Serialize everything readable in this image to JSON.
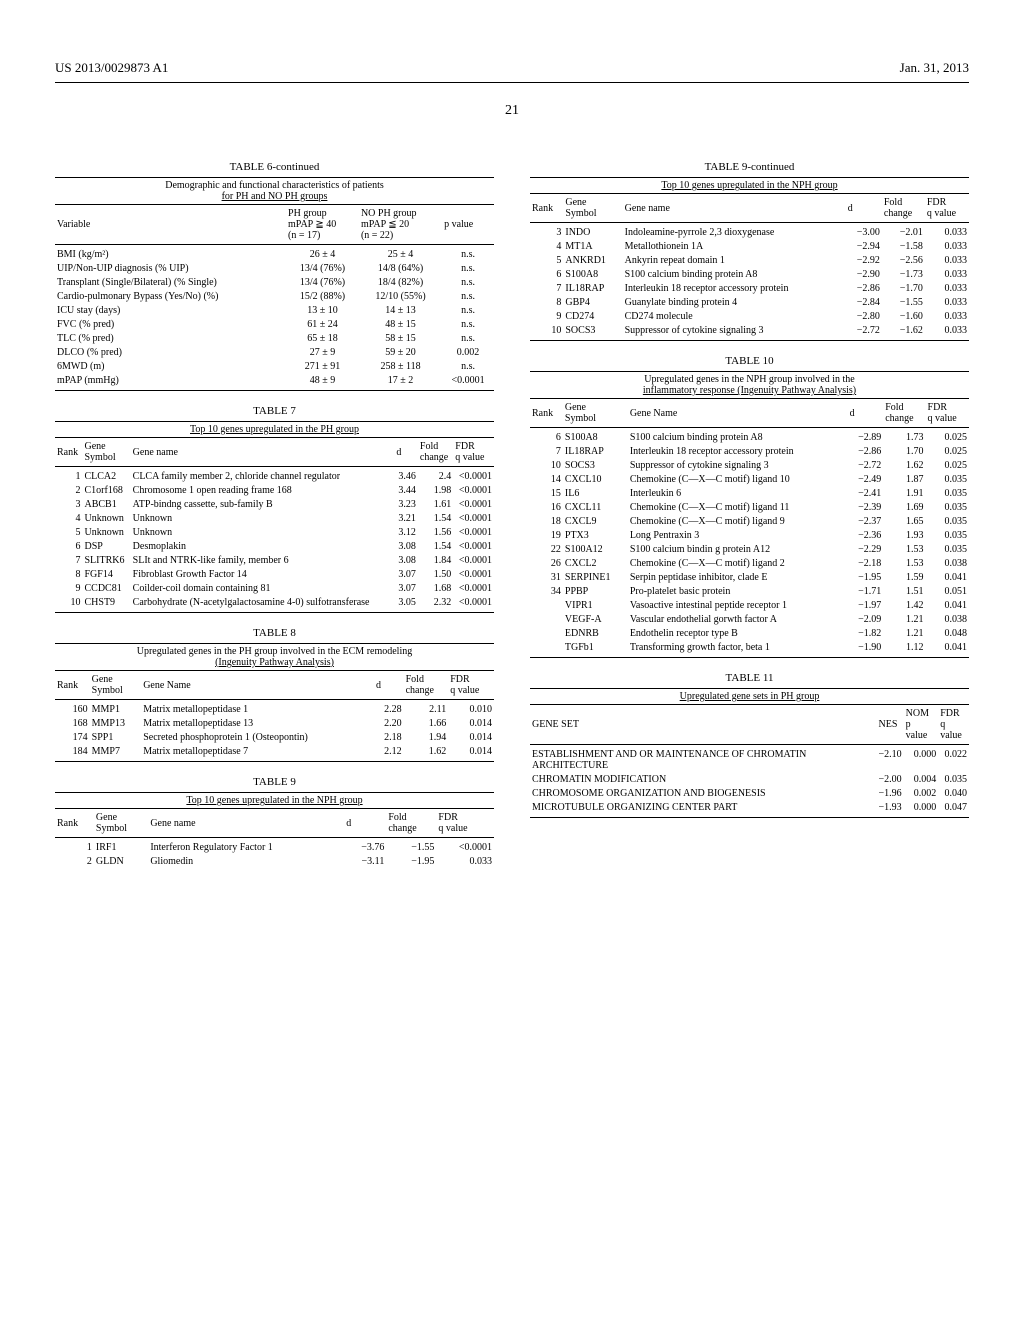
{
  "header": {
    "left": "US 2013/0029873 A1",
    "right": "Jan. 31, 2013",
    "page": "21"
  },
  "table6": {
    "title": "TABLE 6-continued",
    "subtitle1": "Demographic and functional characteristics of patients",
    "subtitle2": "for PH and NO PH groups",
    "col_headers": [
      "Variable",
      "PH group mPAP ≧ 40 (n = 17)",
      "NO PH group mPAP ≦ 20 (n = 22)",
      "p value"
    ],
    "rows": [
      [
        "BMI (kg/m²)",
        "26 ± 4",
        "25 ± 4",
        "n.s."
      ],
      [
        "UIP/Non-UIP diagnosis (% UIP)",
        "13/4 (76%)",
        "14/8 (64%)",
        "n.s."
      ],
      [
        "Transplant (Single/Bilateral) (% Single)",
        "13/4 (76%)",
        "18/4 (82%)",
        "n.s."
      ],
      [
        "Cardio-pulmonary Bypass (Yes/No) (%)",
        "15/2 (88%)",
        "12/10 (55%)",
        "n.s."
      ],
      [
        "ICU stay (days)",
        "13 ± 10",
        "14 ± 13",
        "n.s."
      ],
      [
        "FVC (% pred)",
        "61 ± 24",
        "48 ± 15",
        "n.s."
      ],
      [
        "TLC (% pred)",
        "65 ± 18",
        "58 ± 15",
        "n.s."
      ],
      [
        "DLCO (% pred)",
        "27 ± 9",
        "59 ± 20",
        "0.002"
      ],
      [
        "6MWD (m)",
        "271 ± 91",
        "258 ± 118",
        "n.s."
      ],
      [
        "mPAP (mmHg)",
        "48 ± 9",
        "17 ± 2",
        "<0.0001"
      ]
    ]
  },
  "table7": {
    "title": "TABLE 7",
    "subtitle": "Top 10 genes upregulated in the PH group",
    "col_headers": [
      "Rank",
      "Gene Symbol",
      "Gene name",
      "d",
      "Fold change",
      "FDR q value"
    ],
    "rows": [
      [
        "1",
        "CLCA2",
        "CLCA family member 2, chloride channel regulator",
        "3.46",
        "2.4",
        "<0.0001"
      ],
      [
        "2",
        "C1orf168",
        "Chromosome 1 open reading frame 168",
        "3.44",
        "1.98",
        "<0.0001"
      ],
      [
        "3",
        "ABCB1",
        "ATP-bindng cassette, sub-family B",
        "3.23",
        "1.61",
        "<0.0001"
      ],
      [
        "4",
        "Unknown",
        "Unknown",
        "3.21",
        "1.54",
        "<0.0001"
      ],
      [
        "5",
        "Unknown",
        "Unknown",
        "3.12",
        "1.56",
        "<0.0001"
      ],
      [
        "6",
        "DSP",
        "Desmoplakin",
        "3.08",
        "1.54",
        "<0.0001"
      ],
      [
        "7",
        "SLITRK6",
        "SLIt and NTRK-like family, member 6",
        "3.08",
        "1.84",
        "<0.0001"
      ],
      [
        "8",
        "FGF14",
        "Fibroblast Growth Factor 14",
        "3.07",
        "1.50",
        "<0.0001"
      ],
      [
        "9",
        "CCDC81",
        "Coilder-coil domain containing 81",
        "3.07",
        "1.68",
        "<0.0001"
      ],
      [
        "10",
        "CHST9",
        "Carbohydrate (N-acetylgalactosamine 4-0) sulfotransferase",
        "3.05",
        "2.32",
        "<0.0001"
      ]
    ]
  },
  "table8": {
    "title": "TABLE 8",
    "subtitle1": "Upregulated genes in the PH group involved in the ECM remodeling",
    "subtitle2": "(Ingenuity Pathway Analysis)",
    "col_headers": [
      "Rank",
      "Gene Symbol",
      "Gene Name",
      "d",
      "Fold change",
      "FDR q value"
    ],
    "rows": [
      [
        "160",
        "MMP1",
        "Matrix metallopeptidase 1",
        "2.28",
        "2.11",
        "0.010"
      ],
      [
        "168",
        "MMP13",
        "Matrix metallopeptidase 13",
        "2.20",
        "1.66",
        "0.014"
      ],
      [
        "174",
        "SPP1",
        "Secreted phosphoprotein 1 (Osteopontin)",
        "2.18",
        "1.94",
        "0.014"
      ],
      [
        "184",
        "MMP7",
        "Matrix metallopeptidase 7",
        "2.12",
        "1.62",
        "0.014"
      ]
    ]
  },
  "table9head": {
    "title": "TABLE 9",
    "subtitle": "Top 10 genes upregulated in the NPH group",
    "col_headers": [
      "Rank",
      "Gene Symbol",
      "Gene name",
      "d",
      "Fold change",
      "FDR q value"
    ],
    "rows": [
      [
        "1",
        "IRF1",
        "Interferon Regulatory Factor 1",
        "−3.76",
        "−1.55",
        "<0.0001"
      ],
      [
        "2",
        "GLDN",
        "Gliomedin",
        "−3.11",
        "−1.95",
        "0.033"
      ]
    ]
  },
  "table9cont": {
    "title": "TABLE 9-continued",
    "subtitle": "Top 10 genes upregulated in the NPH group",
    "col_headers": [
      "Rank",
      "Gene Symbol",
      "Gene name",
      "d",
      "Fold change",
      "FDR q value"
    ],
    "rows": [
      [
        "3",
        "INDO",
        "Indoleamine-pyrrole 2,3 dioxygenase",
        "−3.00",
        "−2.01",
        "0.033"
      ],
      [
        "4",
        "MT1A",
        "Metallothionein 1A",
        "−2.94",
        "−1.58",
        "0.033"
      ],
      [
        "5",
        "ANKRD1",
        "Ankyrin repeat domain 1",
        "−2.92",
        "−2.56",
        "0.033"
      ],
      [
        "6",
        "S100A8",
        "S100 calcium binding protein A8",
        "−2.90",
        "−1.73",
        "0.033"
      ],
      [
        "7",
        "IL18RAP",
        "Interleukin 18 receptor accessory protein",
        "−2.86",
        "−1.70",
        "0.033"
      ],
      [
        "8",
        "GBP4",
        "Guanylate binding protein 4",
        "−2.84",
        "−1.55",
        "0.033"
      ],
      [
        "9",
        "CD274",
        "CD274 molecule",
        "−2.80",
        "−1.60",
        "0.033"
      ],
      [
        "10",
        "SOCS3",
        "Suppressor of cytokine signaling 3",
        "−2.72",
        "−1.62",
        "0.033"
      ]
    ]
  },
  "table10": {
    "title": "TABLE 10",
    "subtitle1": "Upregulated genes in the NPH group involved in the",
    "subtitle2": "inflammatory response (Ingenuity Pathway Analysis)",
    "col_headers": [
      "Rank",
      "Gene Symbol",
      "Gene Name",
      "d",
      "Fold change",
      "FDR q value"
    ],
    "rows": [
      [
        "6",
        "S100A8",
        "S100 calcium binding protein A8",
        "−2.89",
        "1.73",
        "0.025"
      ],
      [
        "7",
        "IL18RAP",
        "Interleukin 18 receptor accessory protein",
        "−2.86",
        "1.70",
        "0.025"
      ],
      [
        "10",
        "SOCS3",
        "Suppressor of cytokine signaling 3",
        "−2.72",
        "1.62",
        "0.025"
      ],
      [
        "14",
        "CXCL10",
        "Chemokine (C—X—C motif) ligand 10",
        "−2.49",
        "1.87",
        "0.035"
      ],
      [
        "15",
        "IL6",
        "Interleukin 6",
        "−2.41",
        "1.91",
        "0.035"
      ],
      [
        "16",
        "CXCL11",
        "Chemokine (C—X—C motif) ligand 11",
        "−2.39",
        "1.69",
        "0.035"
      ],
      [
        "18",
        "CXCL9",
        "Chemokine (C—X—C motif) ligand 9",
        "−2.37",
        "1.65",
        "0.035"
      ],
      [
        "19",
        "PTX3",
        "Long Pentraxin 3",
        "−2.36",
        "1.93",
        "0.035"
      ],
      [
        "22",
        "S100A12",
        "S100 calcium bindin g protein A12",
        "−2.29",
        "1.53",
        "0.035"
      ],
      [
        "26",
        "CXCL2",
        "Chemokine (C—X—C motif) ligand 2",
        "−2.18",
        "1.53",
        "0.038"
      ],
      [
        "31",
        "SERPINE1",
        "Serpin peptidase inhibitor, clade E",
        "−1.95",
        "1.59",
        "0.041"
      ],
      [
        "34",
        "PPBP",
        "Pro-platelet basic protein",
        "−1.71",
        "1.51",
        "0.051"
      ],
      [
        "",
        "VIPR1",
        "Vasoactive intestinal peptide receptor 1",
        "−1.97",
        "1.42",
        "0.041"
      ],
      [
        "",
        "VEGF-A",
        "Vascular endothelial gorwth factor A",
        "−2.09",
        "1.21",
        "0.038"
      ],
      [
        "",
        "EDNRB",
        "Endothelin receptor type B",
        "−1.82",
        "1.21",
        "0.048"
      ],
      [
        "",
        "TGFb1",
        "Transforming growth factor, beta 1",
        "−1.90",
        "1.12",
        "0.041"
      ]
    ]
  },
  "table11": {
    "title": "TABLE 11",
    "subtitle": "Upregulated gene sets in PH group",
    "col_headers": [
      "GENE SET",
      "NES",
      "NOM p value",
      "FDR q value"
    ],
    "rows": [
      [
        "ESTABLISHMENT AND OR MAINTENANCE OF CHROMATIN ARCHITECTURE",
        "−2.10",
        "0.000",
        "0.022"
      ],
      [
        "CHROMATIN MODIFICATION",
        "−2.00",
        "0.004",
        "0.035"
      ],
      [
        "CHROMOSOME ORGANIZATION AND BIOGENESIS",
        "−1.96",
        "0.002",
        "0.040"
      ],
      [
        "MICROTUBULE ORGANIZING CENTER PART",
        "−1.93",
        "0.000",
        "0.047"
      ]
    ]
  }
}
